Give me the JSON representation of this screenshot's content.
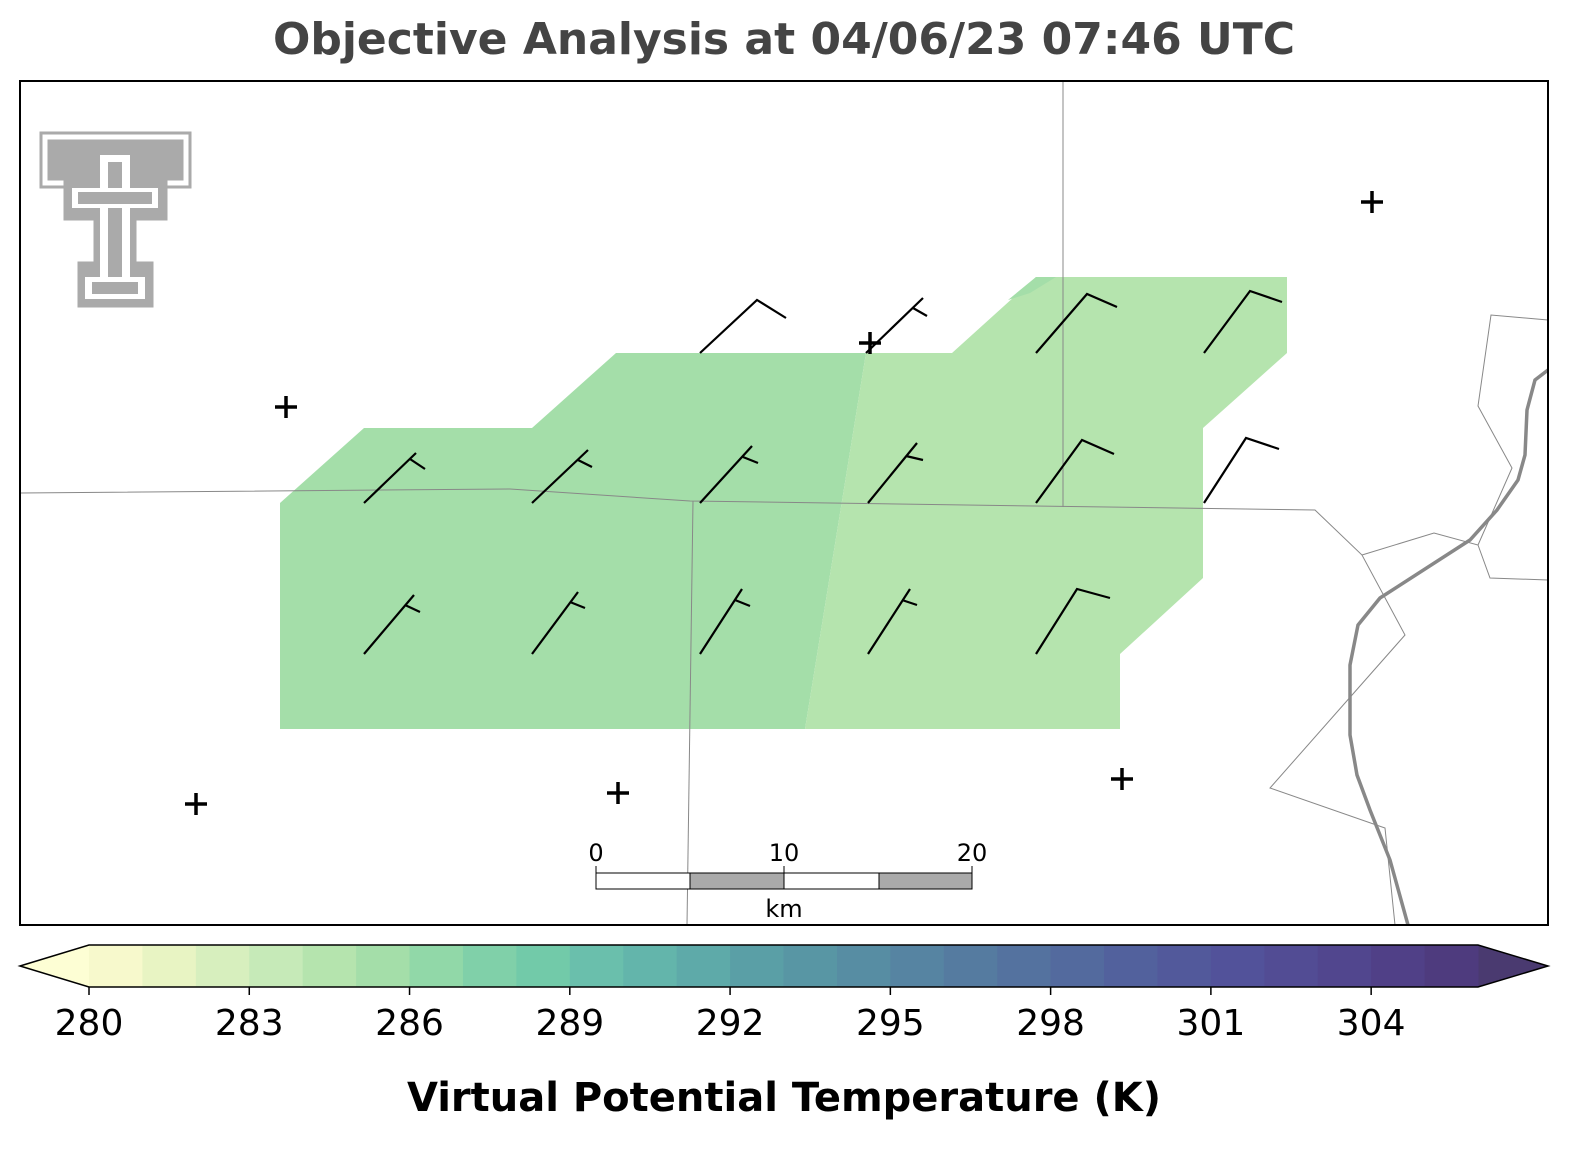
{
  "title": "Objective Analysis at 04/06/23 07:46 UTC",
  "scale_bar": {
    "ticks": [
      0,
      10,
      20
    ],
    "unit": "km"
  },
  "colorbar": {
    "label": "Virtual Potential Temperature (K)",
    "lim": [
      280,
      306
    ],
    "ticks": [
      280,
      283,
      286,
      289,
      292,
      295,
      298,
      301,
      304
    ],
    "under_color": "#fdfed4",
    "over_color": "#4a3a70",
    "colors": [
      "#f7f9cc",
      "#e8f4c3",
      "#d7efbe",
      "#c6eab8",
      "#b5e4ae",
      "#a4dea9",
      "#91d8a8",
      "#80d0a9",
      "#72caa9",
      "#6abfac",
      "#63b5ab",
      "#5eaaa9",
      "#5a9fa6",
      "#5896a4",
      "#578da3",
      "#5684a2",
      "#557ba0",
      "#54729f",
      "#536a9e",
      "#52619d",
      "#52599b",
      "#52529a",
      "#524c94",
      "#51468e",
      "#504087",
      "#4e3b7e"
    ]
  }
}
